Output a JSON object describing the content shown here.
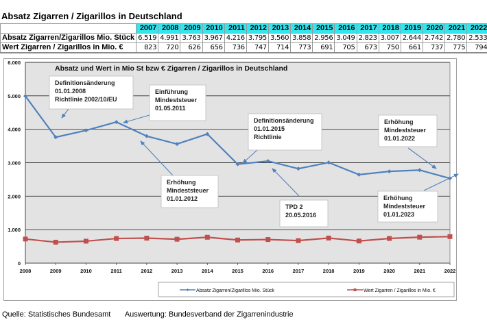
{
  "title": "Absatz Zigarren / Zigarillos in Deutschland",
  "table": {
    "years": [
      "2007",
      "2008",
      "2009",
      "2010",
      "2011",
      "2012",
      "2013",
      "2014",
      "2015",
      "2016",
      "2017",
      "2018",
      "2019",
      "2020",
      "2021",
      "2022"
    ],
    "rows": [
      {
        "label": "Absatz Zigarren/Zigarillos Mio. Stück",
        "values": [
          "6.519",
          "4.991",
          "3.763",
          "3.967",
          "4.216",
          "3.795",
          "3.560",
          "3.858",
          "2.956",
          "3.049",
          "2.823",
          "3.007",
          "2.644",
          "2.742",
          "2.780",
          "2.533"
        ]
      },
      {
        "label": "Wert Zigarren / Zigarillos in Mio. €",
        "values": [
          "823",
          "720",
          "626",
          "656",
          "736",
          "747",
          "714",
          "773",
          "691",
          "705",
          "673",
          "750",
          "661",
          "737",
          "775",
          "794"
        ]
      }
    ]
  },
  "chart_data": {
    "type": "line",
    "title": "Absatz  und Wert in Mio St bzw €  Zigarren / Zigarillos in Deutschland",
    "xlabel": "",
    "ylabel": "",
    "x": [
      "2008",
      "2009",
      "2010",
      "2011",
      "2012",
      "2013",
      "2014",
      "2015",
      "2016",
      "2017",
      "2018",
      "2019",
      "2020",
      "2021",
      "2022"
    ],
    "ylim": [
      0,
      6000
    ],
    "yticks": [
      "0",
      "1.000",
      "2.000",
      "3.000",
      "4.000",
      "5.000",
      "6.000"
    ],
    "ytick_values": [
      0,
      1000,
      2000,
      3000,
      4000,
      5000,
      6000
    ],
    "grid": true,
    "legend_position": "bottom-right",
    "series": [
      {
        "name": "Absatz Zigarren/Zigarillos Mio. Stück",
        "color": "#4f81bd",
        "marker": "diamond",
        "values": [
          4991,
          3763,
          3967,
          4216,
          3795,
          3560,
          3858,
          2956,
          3049,
          2823,
          3007,
          2644,
          2742,
          2780,
          2533
        ]
      },
      {
        "name": "Wert Zigarren / Zigarillos in Mio. €",
        "color": "#c0504d",
        "marker": "square",
        "values": [
          720,
          626,
          656,
          736,
          747,
          714,
          773,
          691,
          705,
          673,
          750,
          661,
          737,
          775,
          794
        ]
      }
    ],
    "annotations": [
      {
        "lines": [
          "Definitionsänderung",
          "01.01.2008",
          "Richtlinie  2002/10/EU"
        ]
      },
      {
        "lines": [
          "Einführung",
          "Mindeststeuer",
          "01.05.2011"
        ]
      },
      {
        "lines": [
          "Definitionsänderung",
          "01.01.2015",
          "Richtlinie"
        ]
      },
      {
        "lines": [
          "Erhöhung",
          "Mindeststeuer",
          "01.01.2022"
        ]
      },
      {
        "lines": [
          "Erhöhung",
          "Mindeststeuer",
          "01.01.2012"
        ]
      },
      {
        "lines": [
          "TPD 2",
          "20.05.2016"
        ]
      },
      {
        "lines": [
          "Erhöhung",
          "Mindeststeuer",
          "01.01.2023"
        ]
      }
    ]
  },
  "footer": {
    "source": "Quelle: Statistisches Bundesamt",
    "analysis": "Auswertung: Bundesverband der Zigarrenindustrie"
  }
}
